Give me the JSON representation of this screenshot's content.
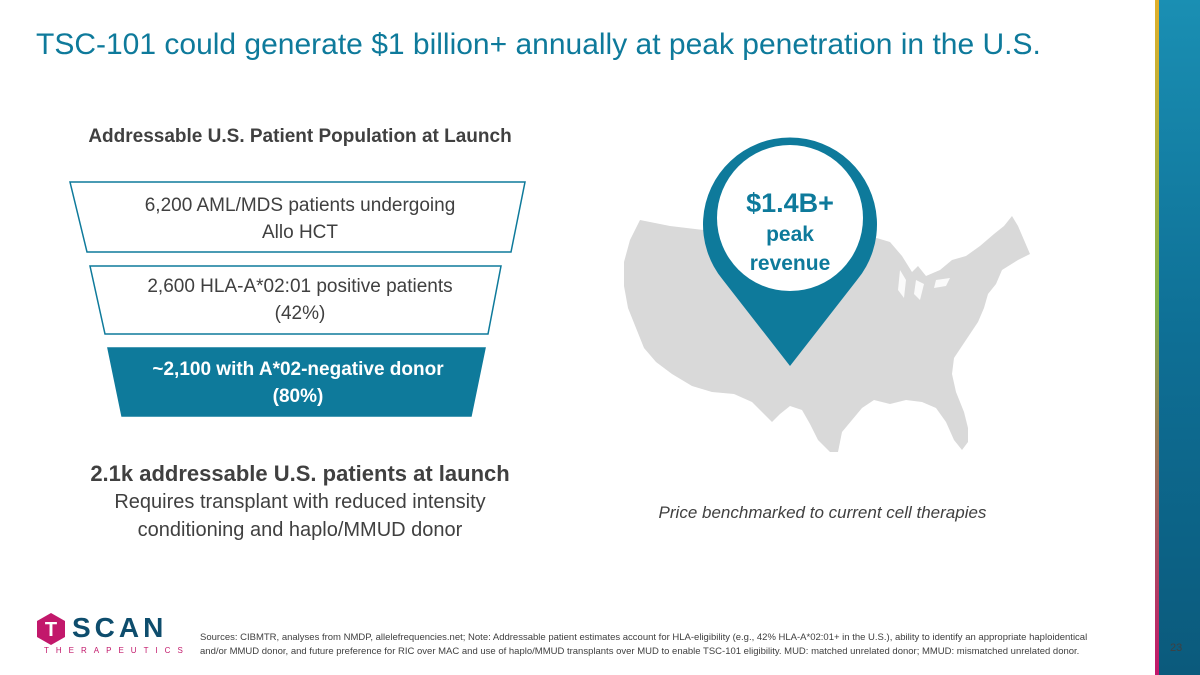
{
  "title": "TSC-101 could generate $1 billion+ annually at peak penetration in the U.S.",
  "funnel": {
    "heading": "Addressable U.S. Patient Population at Launch",
    "tiers": [
      {
        "line1": "6,200 AML/MDS patients undergoing",
        "line2": "Allo HCT"
      },
      {
        "line1": "2,600 HLA-A*02:01 positive patients",
        "line2": "(42%)"
      },
      {
        "line1": "~2,100 with A*02-negative donor",
        "line2": "(80%)"
      }
    ]
  },
  "summary": {
    "headline": "2.1k addressable U.S. patients at launch",
    "line1": "Requires transplant with reduced intensity",
    "line2": "conditioning and haplo/MMUD donor"
  },
  "pin": {
    "amount": "$1.4B+",
    "label1": "peak",
    "label2": "revenue"
  },
  "price_note": "Price benchmarked to current cell therapies",
  "logo": {
    "letter": "T",
    "word": "SCAN",
    "sub": "THERAPEUTICS"
  },
  "sources": "Sources: CIBMTR, analyses from NMDP, allelefrequencies.net; Note: Addressable patient estimates account for HLA-eligibility (e.g., 42% HLA-A*02:01+ in the U.S.), ability to identify an appropriate haploidentical and/or MMUD donor, and future preference for RIC over MAC and use of haplo/MMUD transplants over MUD to enable TSC-101 eligibility. MUD: matched unrelated donor; MMUD: mismatched unrelated donor.",
  "page_number": "23",
  "colors": {
    "teal": "#0e7a9b",
    "map_gray": "#d9d9d9",
    "magenta": "#c2186b",
    "navy": "#0e4d6d"
  }
}
